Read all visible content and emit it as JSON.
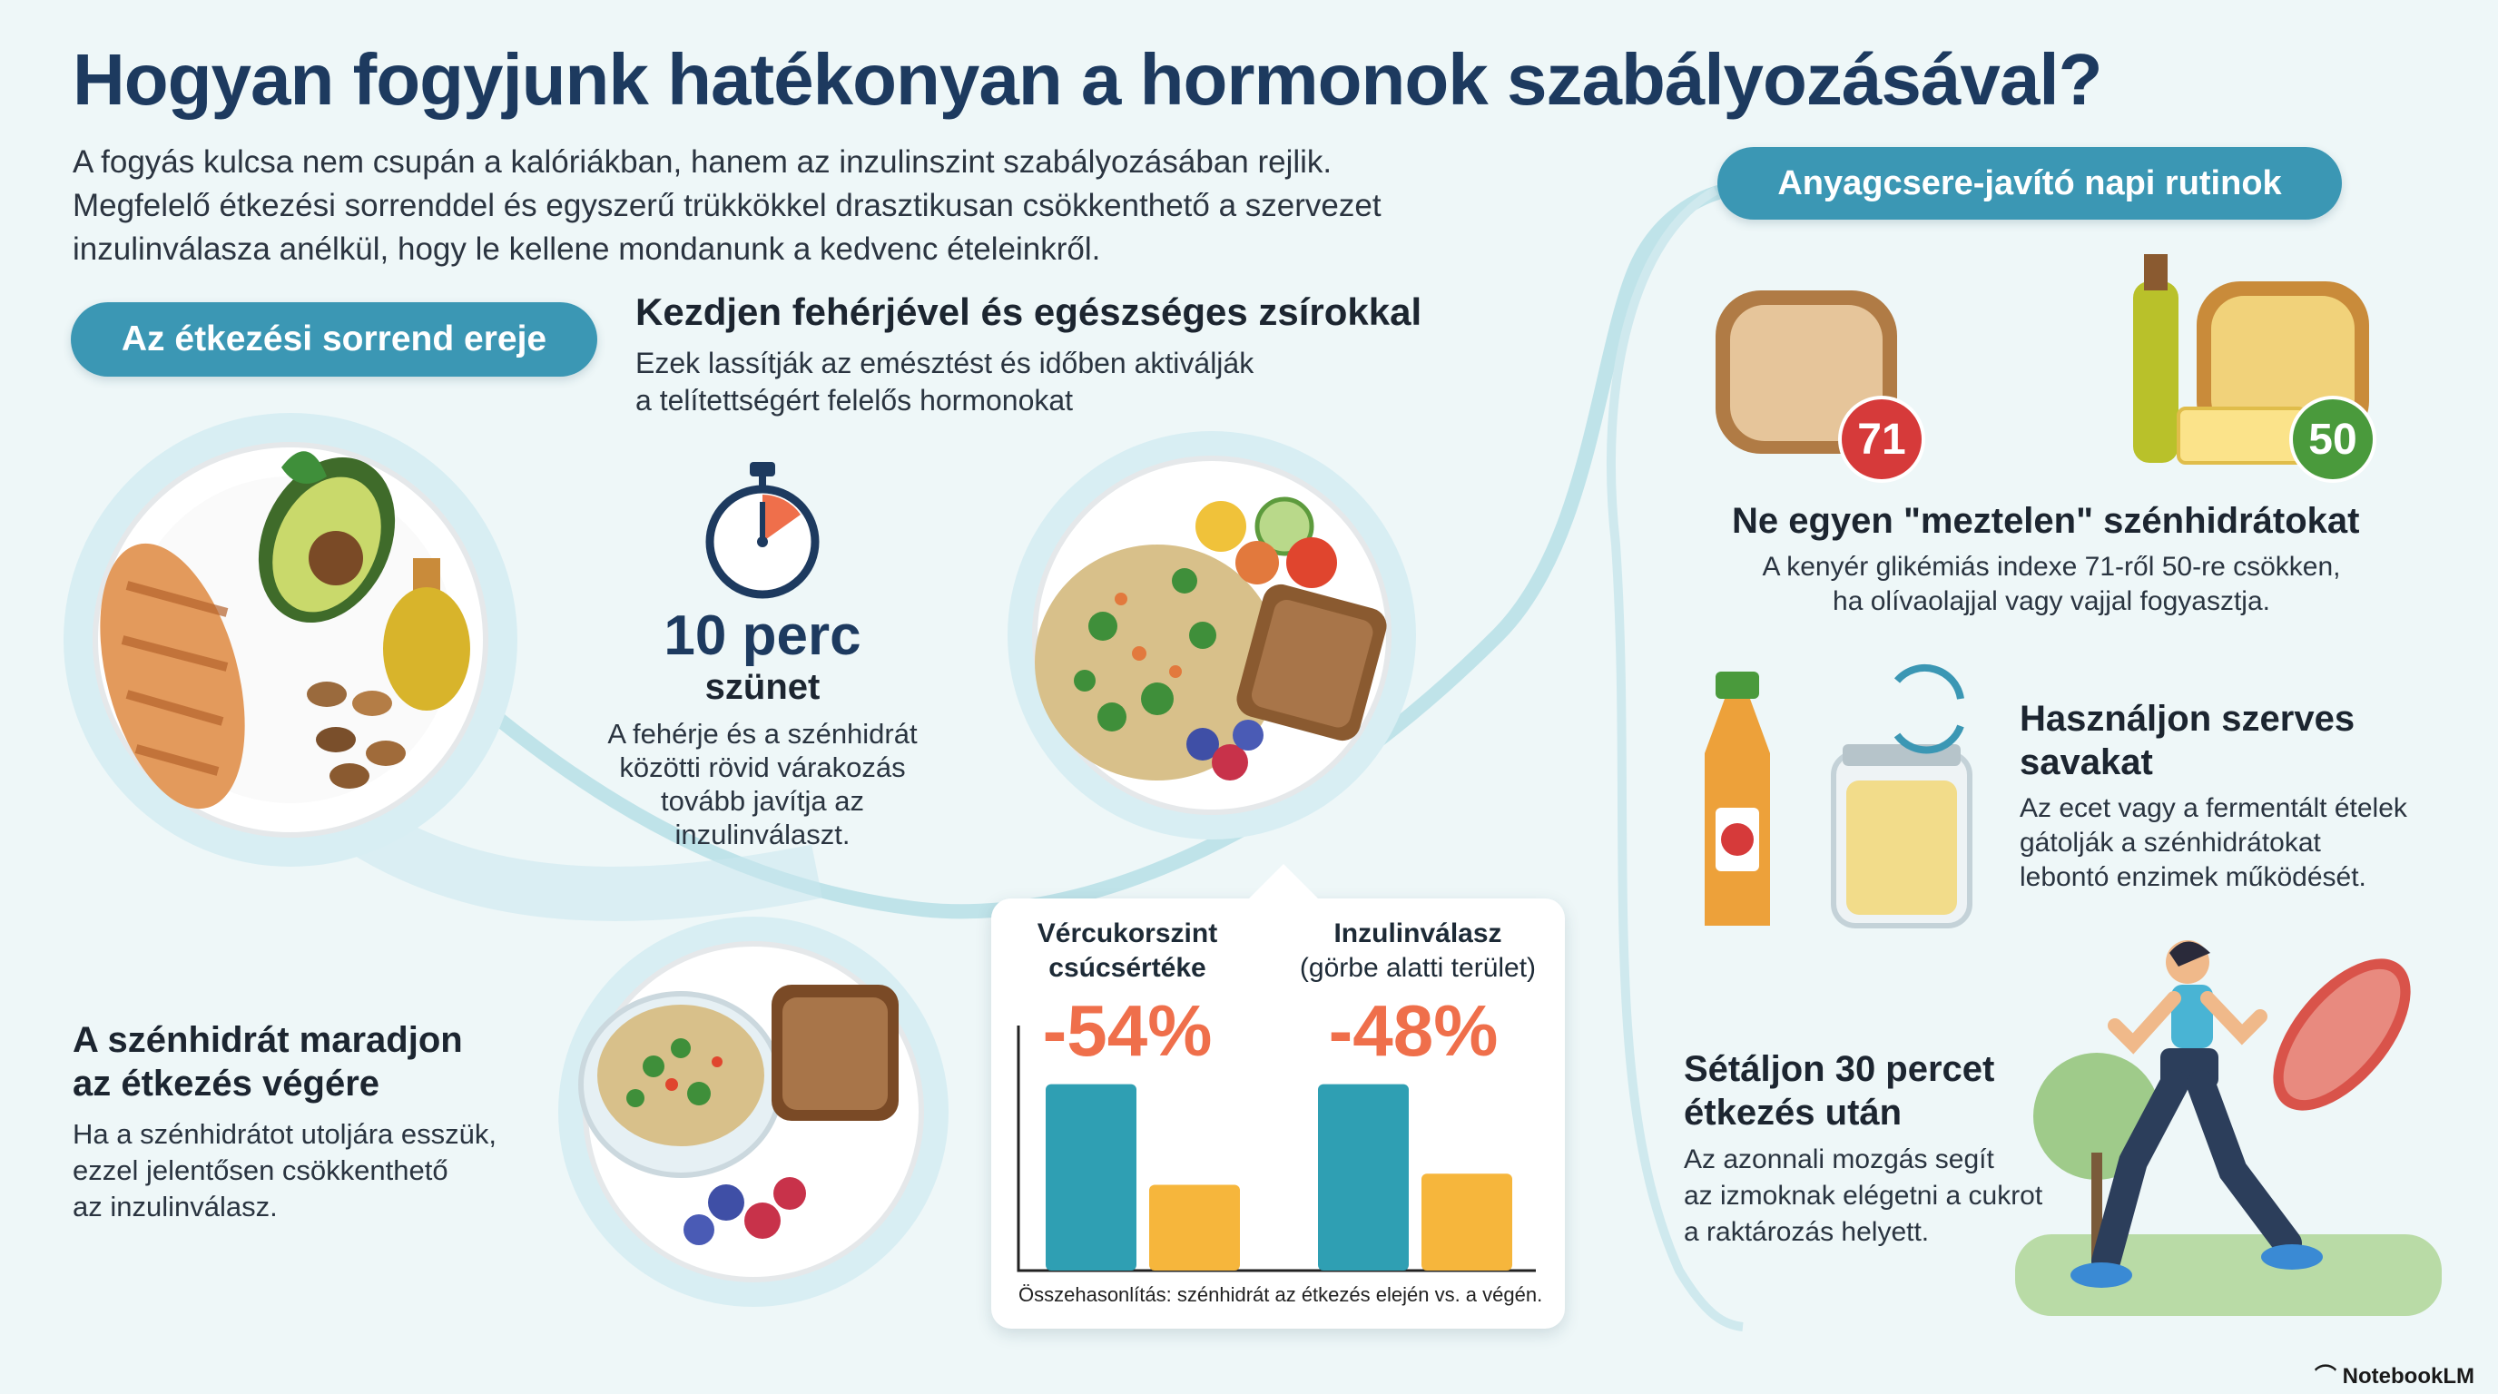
{
  "title": "Hogyan fogyjunk hatékonyan a hormonok szabályozásával?",
  "intro": {
    "line1": "A fogyás kulcsa nem csupán a kalóriákban, hanem az inzulinszint szabályozásában rejlik.",
    "line2": "Megfelelő étkezési sorrenddel és egyszerű trükkökkel drasztikusan csökkenthető a szervezet",
    "line3": "inzulinválasza anélkül, hogy le kellene mondanunk a kedvenc ételeinkről."
  },
  "section_left": {
    "pill": "Az étkezési sorrend ereje",
    "first": {
      "title": "Kezdjen fehérjével és egészséges zsírokkal",
      "desc_line1": "Ezek lassítják az emésztést és időben aktiválják",
      "desc_line2": "a telítettségért felelős hormonokat"
    },
    "pause": {
      "big": "10 perc",
      "sub": "szünet",
      "l1": "A fehérje és a szénhidrát",
      "l2": "közötti rövid várakozás",
      "l3": "tovább javítja az",
      "l4": "inzulinválaszt."
    },
    "carb_last": {
      "title_line1": "A szénhidrát maradjon",
      "title_line2": "az étkezés végére",
      "l1": "Ha a szénhidrátot utoljára esszük,",
      "l2": "ezzel jelentősen csökkenthető",
      "l3": "az inzulinválasz."
    }
  },
  "chart_data": {
    "type": "bar",
    "categories": [
      "Vércukorszint csúcsértéke",
      "Inzulinválasz (görbe alatti terület)"
    ],
    "labels": [
      {
        "line1": "Vércukorszint",
        "line2": "csúcsértéke",
        "pct": "-54%"
      },
      {
        "line1": "Inzulinválasz",
        "line2": "(görbe alatti terület)",
        "pct": "-48%"
      }
    ],
    "series": [
      {
        "values": [
          100,
          100
        ],
        "color": "#2f9fb3"
      },
      {
        "values": [
          46,
          52
        ],
        "color": "#f6b63c"
      }
    ],
    "note": "Összehasonlítás: szénhidrát az étkezés elején vs. a végén.",
    "ylim": [
      0,
      140
    ]
  },
  "section_right": {
    "pill": "Anyagcsere-javító napi rutinok",
    "badges": [
      "71",
      "50"
    ],
    "naked": {
      "title": "Ne egyen \"meztelen\" szénhidrátokat",
      "l1": "A kenyér glikémiás indexe 71-ről 50-re csökken,",
      "l2": "ha olívaolajjal vagy vajjal fogyasztja."
    },
    "acids": {
      "title_line1": "Használjon szerves",
      "title_line2": "savakat",
      "l1": "Az ecet vagy a fermentált ételek",
      "l2": "gátolják a szénhidrátokat",
      "l3": "lebontó enzimek működését."
    },
    "walk": {
      "title_line1": "Sétáljon 30 percet",
      "title_line2": "étkezés után",
      "l1": "Az azonnali mozgás segít",
      "l2": "az izmoknak elégetni a cukrot",
      "l3": "a raktározás helyett."
    }
  },
  "brand": "NotebookLM",
  "colors": {
    "accent": "#3b97b4",
    "title": "#1d3a5f",
    "percent": "#ef6f4b",
    "badge_red": "#d63a3a",
    "badge_green": "#4a9a3c"
  }
}
